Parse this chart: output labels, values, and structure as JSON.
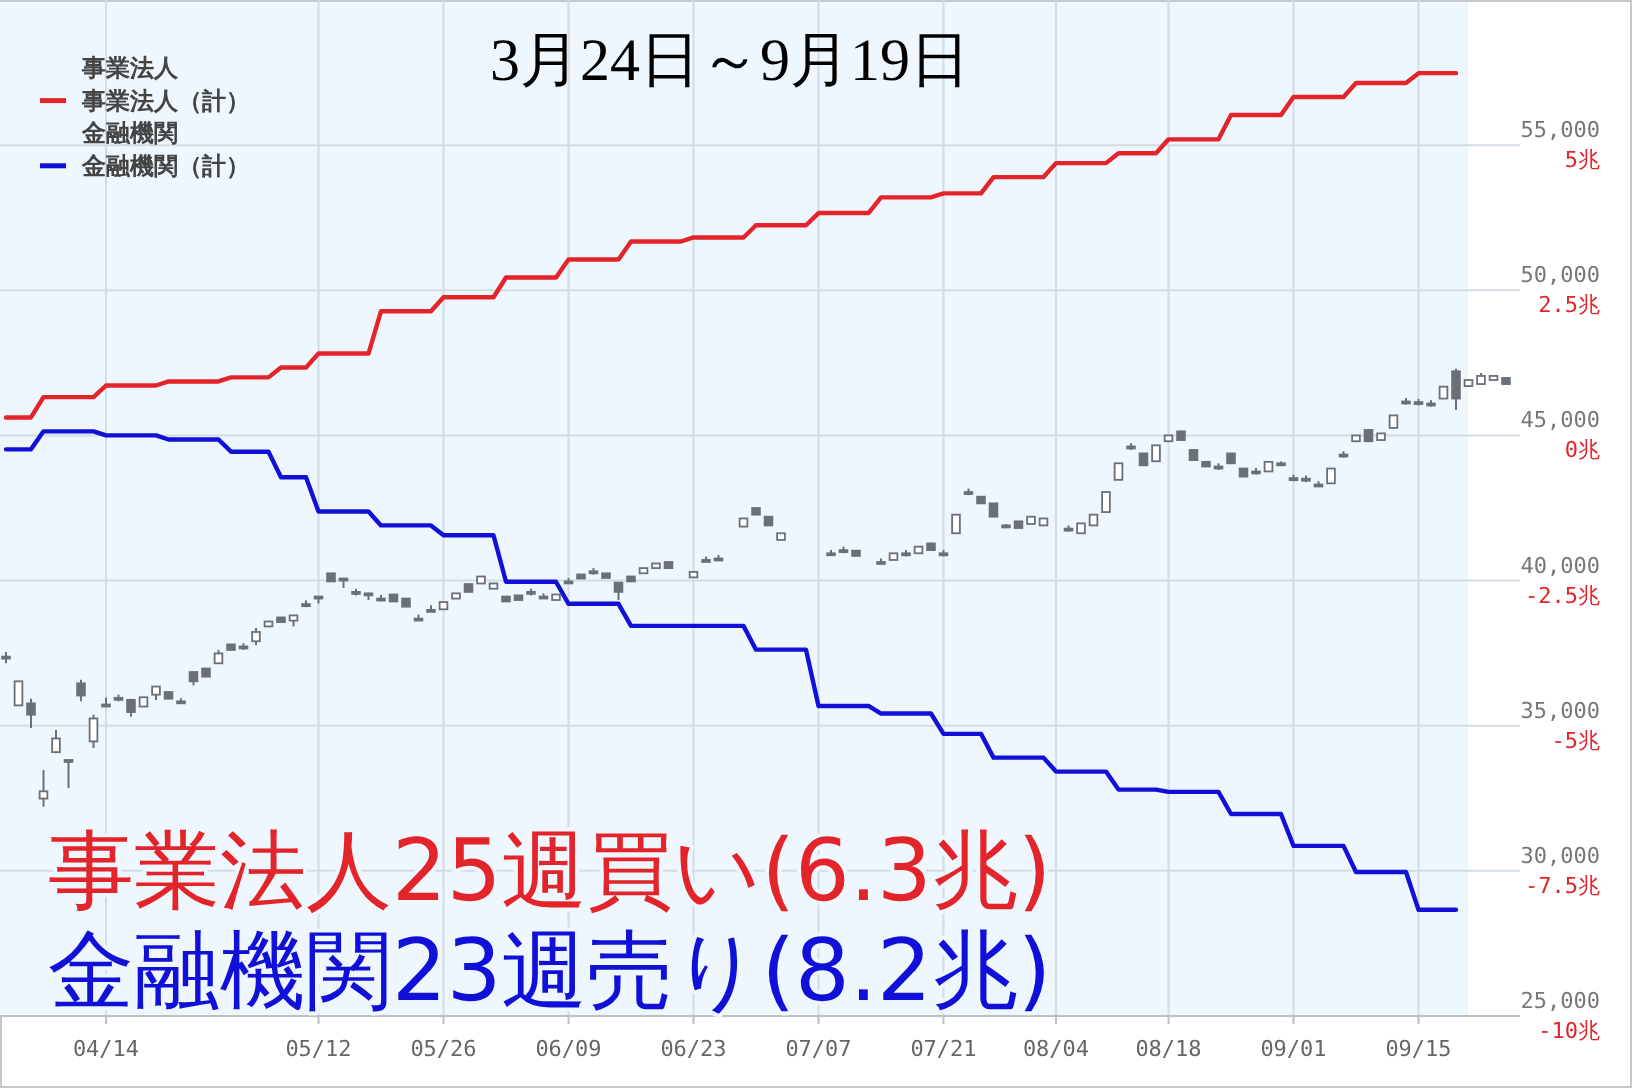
{
  "chart_data": {
    "type": "candlestick",
    "title": "3月24日～9月19日",
    "categories": [
      null,
      null,
      null,
      null,
      null,
      null,
      null,
      null,
      "04/14",
      null,
      null,
      null,
      null,
      null,
      null,
      null,
      null,
      null,
      null,
      null,
      null,
      null,
      null,
      null,
      null,
      "05/12",
      null,
      null,
      null,
      null,
      null,
      null,
      null,
      null,
      null,
      "05/26",
      null,
      null,
      null,
      null,
      null,
      null,
      null,
      null,
      null,
      "06/09",
      null,
      null,
      null,
      null,
      null,
      null,
      null,
      null,
      null,
      "06/23",
      null,
      null,
      null,
      null,
      null,
      null,
      null,
      null,
      null,
      "07/07",
      null,
      null,
      null,
      null,
      null,
      null,
      null,
      null,
      null,
      "07/21",
      null,
      null,
      null,
      null,
      null,
      null,
      null,
      null,
      "08/04",
      null,
      null,
      null,
      null,
      null,
      null,
      null,
      null,
      "08/18",
      null,
      null,
      null,
      null,
      null,
      null,
      null,
      null,
      null,
      "09/01",
      null,
      null,
      null,
      null,
      null,
      null,
      null,
      null,
      null,
      "09/15",
      null,
      null,
      null,
      null,
      null,
      null,
      null
    ],
    "color": "#6b7077",
    "ohlc": [
      [
        37380,
        37540,
        37150,
        37380
      ],
      [
        35700,
        36530,
        35700,
        36530
      ],
      [
        35770,
        35930,
        34920,
        35380
      ],
      [
        32490,
        33470,
        32210,
        32740
      ],
      [
        34090,
        34850,
        34050,
        34560
      ],
      [
        33820,
        33820,
        32850,
        33820
      ],
      [
        36460,
        36580,
        35840,
        36040
      ],
      [
        34460,
        35380,
        34230,
        35250
      ],
      [
        35730,
        35960,
        35730,
        35730
      ],
      [
        35960,
        36070,
        35840,
        35960
      ],
      [
        35890,
        35930,
        35310,
        35470
      ],
      [
        35660,
        35980,
        35660,
        35980
      ],
      [
        36070,
        36350,
        35890,
        36350
      ],
      [
        36160,
        36160,
        35930,
        35930
      ],
      [
        35840,
        35950,
        35840,
        35840
      ],
      [
        36850,
        36850,
        36390,
        36530
      ],
      [
        36970,
        36970,
        36690,
        36690
      ],
      [
        37150,
        37610,
        37130,
        37490
      ],
      [
        37800,
        37800,
        37610,
        37610
      ],
      [
        37730,
        37840,
        37610,
        37730
      ],
      [
        37910,
        38370,
        37770,
        38230
      ],
      [
        38420,
        38590,
        38420,
        38590
      ],
      [
        38730,
        38730,
        38570,
        38570
      ],
      [
        38620,
        38800,
        38420,
        38800
      ],
      [
        39190,
        39310,
        39080,
        39190
      ],
      [
        39450,
        39450,
        39210,
        39450
      ],
      [
        40250,
        40250,
        39970,
        39970
      ],
      [
        40070,
        40070,
        39750,
        40070
      ],
      [
        39610,
        39720,
        39490,
        39610
      ],
      [
        39560,
        39560,
        39330,
        39560
      ],
      [
        39380,
        39500,
        39380,
        39380
      ],
      [
        39520,
        39520,
        39280,
        39280
      ],
      [
        39380,
        39380,
        39100,
        39100
      ],
      [
        38690,
        38830,
        38690,
        38690
      ],
      [
        38990,
        39150,
        38990,
        38990
      ],
      [
        39010,
        39260,
        39010,
        39260
      ],
      [
        39380,
        39560,
        39380,
        39560
      ],
      [
        39880,
        39880,
        39610,
        39610
      ],
      [
        39900,
        40140,
        39900,
        40140
      ],
      [
        39720,
        39900,
        39720,
        39900
      ],
      [
        39450,
        39450,
        39280,
        39280
      ],
      [
        39490,
        39490,
        39330,
        39330
      ],
      [
        39610,
        39720,
        39490,
        39610
      ],
      [
        39450,
        39560,
        39450,
        39450
      ],
      [
        39330,
        39520,
        39330,
        39520
      ],
      [
        39970,
        40090,
        39970,
        39970
      ],
      [
        40210,
        40210,
        40070,
        40070
      ],
      [
        40320,
        40430,
        40200,
        40320
      ],
      [
        40250,
        40250,
        40090,
        40090
      ],
      [
        39930,
        39930,
        39330,
        39610
      ],
      [
        40140,
        40140,
        39970,
        39970
      ],
      [
        40250,
        40430,
        40250,
        40430
      ],
      [
        40430,
        40590,
        40430,
        40590
      ],
      [
        40640,
        40640,
        40430,
        40430
      ],
      null,
      [
        40110,
        40300,
        40110,
        40300
      ],
      [
        40710,
        40830,
        40710,
        40710
      ],
      [
        40760,
        40880,
        40760,
        40760
      ],
      null,
      [
        41860,
        42140,
        41860,
        42140
      ],
      [
        42500,
        42500,
        42270,
        42270
      ],
      [
        42200,
        42200,
        41900,
        41900
      ],
      [
        41400,
        41630,
        41400,
        41630
      ],
      null,
      null,
      null,
      [
        40940,
        41050,
        40940,
        40940
      ],
      [
        41050,
        41170,
        40940,
        41050
      ],
      [
        41030,
        41030,
        40850,
        40850
      ],
      null,
      [
        40640,
        40760,
        40640,
        40640
      ],
      [
        40710,
        40940,
        40710,
        40940
      ],
      [
        40940,
        41050,
        40830,
        40940
      ],
      [
        40940,
        41170,
        40940,
        41170
      ],
      [
        41280,
        41280,
        41050,
        41050
      ],
      [
        40940,
        41050,
        40830,
        40940
      ],
      [
        41630,
        42270,
        41630,
        42270
      ],
      [
        43050,
        43170,
        42940,
        43050
      ],
      [
        42890,
        42890,
        42660,
        42660
      ],
      [
        42660,
        42660,
        42200,
        42200
      ],
      [
        41900,
        41950,
        41850,
        41900
      ],
      [
        42040,
        42040,
        41810,
        41810
      ],
      [
        41950,
        42200,
        41950,
        42200
      ],
      [
        41900,
        42140,
        41900,
        42140
      ],
      null,
      [
        41790,
        41900,
        41680,
        41790
      ],
      [
        41630,
        41970,
        41630,
        41970
      ],
      [
        41900,
        42270,
        41900,
        42270
      ],
      [
        42360,
        43050,
        42360,
        43050
      ],
      [
        43470,
        44040,
        43470,
        44040
      ],
      [
        44620,
        44730,
        44500,
        44620
      ],
      [
        44380,
        44380,
        43970,
        43970
      ],
      [
        44110,
        44660,
        44110,
        44660
      ],
      [
        44800,
        45000,
        44800,
        45000
      ],
      [
        45140,
        45140,
        44840,
        44840
      ],
      [
        44500,
        44500,
        44150,
        44150
      ],
      [
        44090,
        44090,
        43930,
        43930
      ],
      [
        43930,
        44040,
        43810,
        43930
      ],
      [
        44380,
        44380,
        44040,
        44040
      ],
      [
        43860,
        43860,
        43580,
        43580
      ],
      [
        43760,
        43880,
        43650,
        43760
      ],
      [
        43760,
        44090,
        43760,
        44090
      ],
      [
        44040,
        44100,
        43990,
        44040
      ],
      [
        43530,
        43650,
        43420,
        43530
      ],
      [
        43510,
        43620,
        43390,
        43510
      ],
      [
        43310,
        43420,
        43310,
        43310
      ],
      [
        43350,
        43860,
        43350,
        43860
      ],
      [
        44340,
        44450,
        44230,
        44340
      ],
      [
        44800,
        45000,
        44800,
        45000
      ],
      [
        45190,
        45190,
        44800,
        44800
      ],
      [
        44840,
        45070,
        44840,
        45070
      ],
      [
        45260,
        45690,
        45260,
        45690
      ],
      [
        46170,
        46290,
        46060,
        46170
      ],
      [
        46150,
        46260,
        46030,
        46150
      ],
      [
        46100,
        46210,
        45990,
        46100
      ],
      [
        46270,
        46680,
        46270,
        46680
      ],
      [
        47210,
        47300,
        45880,
        46270
      ],
      [
        46700,
        46910,
        46700,
        46910
      ],
      [
        46770,
        47150,
        46770,
        47050
      ],
      [
        46910,
        47050,
        46910,
        47050
      ],
      [
        46980,
        46980,
        46770,
        46770
      ]
    ],
    "series": [
      {
        "name": "事業法人（計）",
        "type": "line",
        "axis": "y2",
        "color": "#e3242b",
        "line_style": "solid",
        "values": [
          0.31,
          0.31,
          0.31,
          0.66,
          0.66,
          0.66,
          0.66,
          0.66,
          0.86,
          0.86,
          0.86,
          0.86,
          0.86,
          0.93,
          0.93,
          0.93,
          0.93,
          0.93,
          1.0,
          1.0,
          1.0,
          1.0,
          1.17,
          1.17,
          1.17,
          1.41,
          1.41,
          1.41,
          1.41,
          1.41,
          2.14,
          2.14,
          2.14,
          2.14,
          2.14,
          2.38,
          2.38,
          2.38,
          2.38,
          2.38,
          2.72,
          2.72,
          2.72,
          2.72,
          2.72,
          3.03,
          3.03,
          3.03,
          3.03,
          3.03,
          3.34,
          3.34,
          3.34,
          3.34,
          3.34,
          3.41,
          3.41,
          3.41,
          3.41,
          3.41,
          3.62,
          3.62,
          3.62,
          3.62,
          3.62,
          3.83,
          3.83,
          3.83,
          3.83,
          3.83,
          4.1,
          4.1,
          4.1,
          4.1,
          4.1,
          4.17,
          4.17,
          4.17,
          4.17,
          4.45,
          4.45,
          4.45,
          4.45,
          4.45,
          4.69,
          4.69,
          4.69,
          4.69,
          4.69,
          4.86,
          4.86,
          4.86,
          4.86,
          5.1,
          5.1,
          5.1,
          5.1,
          5.1,
          5.52,
          5.52,
          5.52,
          5.52,
          5.52,
          5.83,
          5.83,
          5.83,
          5.83,
          5.83,
          6.07,
          6.07,
          6.07,
          6.07,
          6.07,
          6.24,
          6.24,
          6.24,
          6.24,
          null,
          null,
          null,
          null
        ]
      },
      {
        "name": "金融機関（計）",
        "type": "line",
        "axis": "y2",
        "color": "#1010d8",
        "line_style": "solid",
        "values": [
          -0.24,
          -0.24,
          -0.24,
          0.07,
          0.07,
          0.07,
          0.07,
          0.07,
          0.0,
          0.0,
          0.0,
          0.0,
          0.0,
          -0.07,
          -0.07,
          -0.07,
          -0.07,
          -0.07,
          -0.28,
          -0.28,
          -0.28,
          -0.28,
          -0.72,
          -0.72,
          -0.72,
          -1.31,
          -1.31,
          -1.31,
          -1.31,
          -1.31,
          -1.55,
          -1.55,
          -1.55,
          -1.55,
          -1.55,
          -1.72,
          -1.72,
          -1.72,
          -1.72,
          -1.72,
          -2.52,
          -2.52,
          -2.52,
          -2.52,
          -2.52,
          -2.9,
          -2.9,
          -2.9,
          -2.9,
          -2.9,
          -3.28,
          -3.28,
          -3.28,
          -3.28,
          -3.28,
          -3.28,
          -3.28,
          -3.28,
          -3.28,
          -3.28,
          -3.69,
          -3.69,
          -3.69,
          -3.69,
          -3.69,
          -4.66,
          -4.66,
          -4.66,
          -4.66,
          -4.66,
          -4.79,
          -4.79,
          -4.79,
          -4.79,
          -4.79,
          -5.14,
          -5.14,
          -5.14,
          -5.14,
          -5.55,
          -5.55,
          -5.55,
          -5.55,
          -5.55,
          -5.79,
          -5.79,
          -5.79,
          -5.79,
          -5.79,
          -6.1,
          -6.1,
          -6.1,
          -6.1,
          -6.14,
          -6.14,
          -6.14,
          -6.14,
          -6.14,
          -6.52,
          -6.52,
          -6.52,
          -6.52,
          -6.52,
          -7.07,
          -7.07,
          -7.07,
          -7.07,
          -7.07,
          -7.52,
          -7.52,
          -7.52,
          -7.52,
          -7.52,
          -8.17,
          -8.17,
          -8.17,
          -8.17,
          null,
          null,
          null,
          null
        ]
      }
    ],
    "ylim": [
      25000,
      60000
    ],
    "yticks": [
      {
        "value": 25000,
        "label": "25,000"
      },
      {
        "value": 30000,
        "label": "30,000"
      },
      {
        "value": 35000,
        "label": "35,000"
      },
      {
        "value": 40000,
        "label": "40,000"
      },
      {
        "value": 45000,
        "label": "45,000"
      },
      {
        "value": 50000,
        "label": "50,000"
      },
      {
        "value": 55000,
        "label": "55,000"
      }
    ],
    "y2lim": [
      -10,
      7.5
    ],
    "y2ticks": [
      {
        "value": -10,
        "label": "-10兆"
      },
      {
        "value": -7.5,
        "label": "-7.5兆"
      },
      {
        "value": -5,
        "label": "-5兆"
      },
      {
        "value": -2.5,
        "label": "-2.5兆"
      },
      {
        "value": 0,
        "label": "0兆"
      },
      {
        "value": 2.5,
        "label": "2.5兆"
      },
      {
        "value": 5,
        "label": "5兆"
      }
    ],
    "grid": true,
    "legend": "top left",
    "annotations": [
      "事業法人",
      "金融機関",
      "事業法人25週買い(6.3兆)",
      "金融機関23週売り(8.2兆)"
    ]
  }
}
